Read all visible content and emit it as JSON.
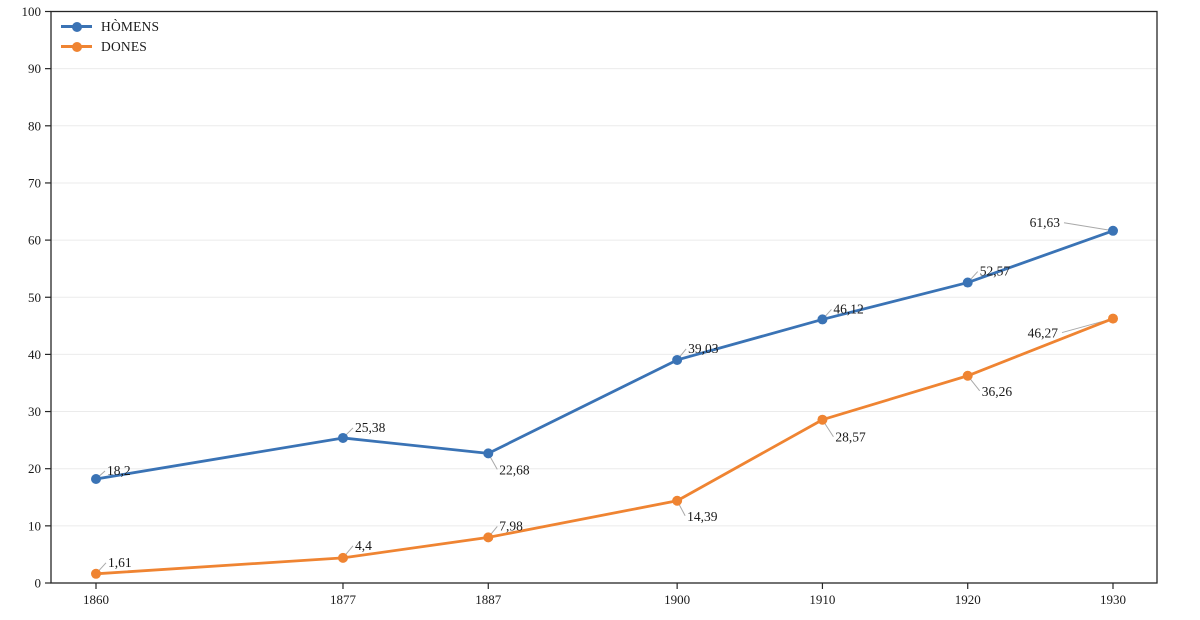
{
  "chart_data": {
    "type": "line",
    "title": "",
    "xlabel": "",
    "ylabel": "",
    "x": [
      1860,
      1877,
      1887,
      1900,
      1910,
      1920,
      1930
    ],
    "xtick_labels": [
      "1860",
      "1877",
      "1887",
      "1900",
      "1910",
      "1920",
      "1930"
    ],
    "yticks": [
      0,
      10,
      20,
      30,
      40,
      50,
      60,
      70,
      80,
      90,
      100
    ],
    "ylim": [
      0,
      100
    ],
    "grid": "horizontal-light",
    "legend_position": "top-left-inside",
    "colors": {
      "axis": "#262626",
      "grid": "#ebebeb",
      "leader": "#a9a9a9",
      "label_text": "#1a1a1a"
    },
    "series": [
      {
        "name": "HÒMENS",
        "color": "#3A73B5",
        "values": [
          18.2,
          25.38,
          22.68,
          39.03,
          46.12,
          52.57,
          61.63
        ],
        "point_labels": [
          "18,2",
          "25,38",
          "22,68",
          "39,03",
          "46,12",
          "52,57",
          "61,63"
        ],
        "label_offsets": [
          {
            "dx": 11,
            "dy": -4,
            "anchor": "start"
          },
          {
            "dx": 12,
            "dy": -6,
            "anchor": "start"
          },
          {
            "dx": 11,
            "dy": 21,
            "anchor": "start"
          },
          {
            "dx": 11,
            "dy": -7,
            "anchor": "start"
          },
          {
            "dx": 11,
            "dy": -6,
            "anchor": "start"
          },
          {
            "dx": 12,
            "dy": -7,
            "anchor": "start"
          },
          {
            "dx": -53,
            "dy": -4,
            "anchor": "end"
          }
        ]
      },
      {
        "name": "DONES",
        "color": "#EF8432",
        "values": [
          1.61,
          4.4,
          7.98,
          14.39,
          28.57,
          36.26,
          46.27
        ],
        "point_labels": [
          "1,61",
          "4,4",
          "7,98",
          "14,39",
          "28,57",
          "36,26",
          "46,27"
        ],
        "label_offsets": [
          {
            "dx": 12,
            "dy": -7,
            "anchor": "start"
          },
          {
            "dx": 12,
            "dy": -8,
            "anchor": "start"
          },
          {
            "dx": 11,
            "dy": -7,
            "anchor": "start"
          },
          {
            "dx": 10,
            "dy": 20,
            "anchor": "start"
          },
          {
            "dx": 13,
            "dy": 22,
            "anchor": "start"
          },
          {
            "dx": 14,
            "dy": 20,
            "anchor": "start"
          },
          {
            "dx": -55,
            "dy": 19,
            "anchor": "end"
          }
        ]
      }
    ]
  }
}
